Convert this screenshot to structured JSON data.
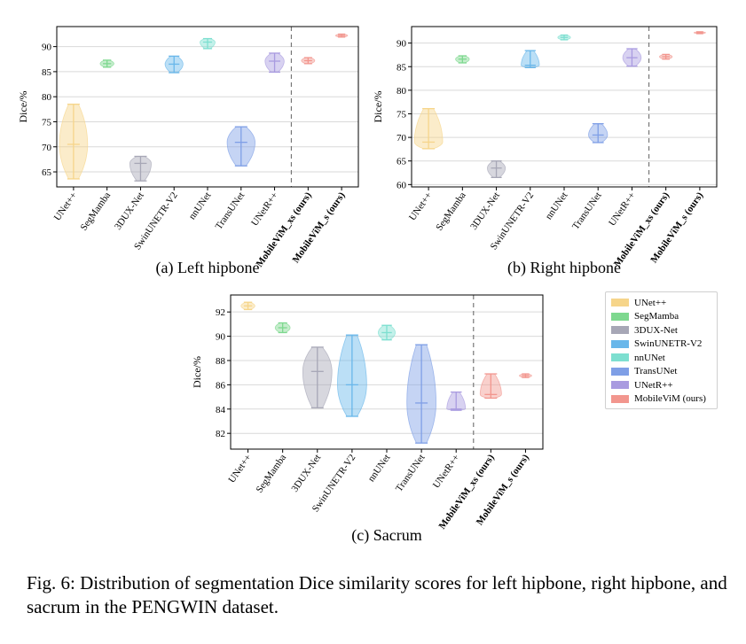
{
  "models": [
    "UNet++",
    "SegMamba",
    "3DUX-Net",
    "SwinUNETR-V2",
    "nnUNet",
    "TransUNet",
    "UNetR++",
    "MobileViM_xs (ours)",
    "MobileViM_s (ours)"
  ],
  "legend": {
    "items": [
      {
        "label": "UNet++",
        "color": "#f6d58a"
      },
      {
        "label": "SegMamba",
        "color": "#7ed88f"
      },
      {
        "label": "3DUX-Net",
        "color": "#a7a7b6"
      },
      {
        "label": "SwinUNETR-V2",
        "color": "#69b7ea"
      },
      {
        "label": "nnUNet",
        "color": "#7ddfd0"
      },
      {
        "label": "TransUNet",
        "color": "#7f9fe6"
      },
      {
        "label": "UNetR++",
        "color": "#a99be0"
      },
      {
        "label": "MobileViM (ours)",
        "color": "#f2968e"
      }
    ]
  },
  "caption": "Fig. 6: Distribution of segmentation Dice similarity scores for left hipbone, right hipbone, and sacrum in the PENGWIN dataset.",
  "chart_data": [
    {
      "type": "violin",
      "subtitle": "(a) Left hipbone",
      "ylabel": "Dice/%",
      "ylim": [
        62,
        94
      ],
      "yticks": [
        65,
        70,
        75,
        80,
        85,
        90
      ],
      "grid": true,
      "separator_after_index": 6,
      "categories": [
        "UNet++",
        "SegMamba",
        "3DUX-Net",
        "SwinUNETR-V2",
        "nnUNet",
        "TransUNet",
        "UNetR++",
        "MobileViM_xs (ours)",
        "MobileViM_s (ours)"
      ],
      "series": [
        {
          "min": 63.6,
          "max": 78.5,
          "median": 70.5
        },
        {
          "min": 85.9,
          "max": 87.3,
          "median": 86.6
        },
        {
          "min": 63.2,
          "max": 68.1,
          "median": 66.7
        },
        {
          "min": 84.8,
          "max": 88.1,
          "median": 86.5
        },
        {
          "min": 89.6,
          "max": 91.6,
          "median": 90.9
        },
        {
          "min": 66.2,
          "max": 74.0,
          "median": 70.9
        },
        {
          "min": 84.9,
          "max": 88.7,
          "median": 87.1
        },
        {
          "min": 86.6,
          "max": 87.8,
          "median": 87.2
        },
        {
          "min": 91.9,
          "max": 92.5,
          "median": 92.2
        }
      ]
    },
    {
      "type": "violin",
      "subtitle": "(b) Right hipbone",
      "ylabel": "Dice/%",
      "ylim": [
        59.5,
        93.5
      ],
      "yticks": [
        60,
        65,
        70,
        75,
        80,
        85,
        90
      ],
      "grid": true,
      "separator_after_index": 6,
      "categories": [
        "UNet++",
        "SegMamba",
        "3DUX-Net",
        "SwinUNETR-V2",
        "nnUNet",
        "TransUNet",
        "UNetR++",
        "MobileViM_xs (ours)",
        "MobileViM_s (ours)"
      ],
      "series": [
        {
          "min": 67.6,
          "max": 76.1,
          "median": 69.0
        },
        {
          "min": 85.8,
          "max": 87.3,
          "median": 86.6
        },
        {
          "min": 61.5,
          "max": 65.0,
          "median": 63.5
        },
        {
          "min": 84.8,
          "max": 88.4,
          "median": 85.3
        },
        {
          "min": 90.7,
          "max": 91.7,
          "median": 91.2
        },
        {
          "min": 68.9,
          "max": 72.9,
          "median": 70.5
        },
        {
          "min": 85.1,
          "max": 88.8,
          "median": 86.9
        },
        {
          "min": 86.6,
          "max": 87.6,
          "median": 87.1
        },
        {
          "min": 92.0,
          "max": 92.4,
          "median": 92.2
        }
      ]
    },
    {
      "type": "violin",
      "subtitle": "(c) Sacrum",
      "ylabel": "Dice/%",
      "ylim": [
        80.7,
        93.4
      ],
      "yticks": [
        82,
        84,
        86,
        88,
        90,
        92
      ],
      "grid": true,
      "separator_after_index": 6,
      "categories": [
        "UNet++",
        "SegMamba",
        "3DUX-Net",
        "SwinUNETR-V2",
        "nnUNet",
        "TransUNet",
        "UNetR++",
        "MobileViM_xs (ours)",
        "MobileViM_s (ours)"
      ],
      "series": [
        {
          "min": 92.2,
          "max": 92.8,
          "median": 92.5
        },
        {
          "min": 90.3,
          "max": 91.1,
          "median": 90.7
        },
        {
          "min": 84.1,
          "max": 89.1,
          "median": 87.1
        },
        {
          "min": 83.4,
          "max": 90.1,
          "median": 86.0
        },
        {
          "min": 89.7,
          "max": 90.9,
          "median": 90.3
        },
        {
          "min": 81.2,
          "max": 89.3,
          "median": 84.5
        },
        {
          "min": 83.9,
          "max": 85.4,
          "median": 84.0
        },
        {
          "min": 84.9,
          "max": 86.9,
          "median": 85.2
        },
        {
          "min": 86.6,
          "max": 86.9,
          "median": 86.75
        }
      ]
    }
  ]
}
